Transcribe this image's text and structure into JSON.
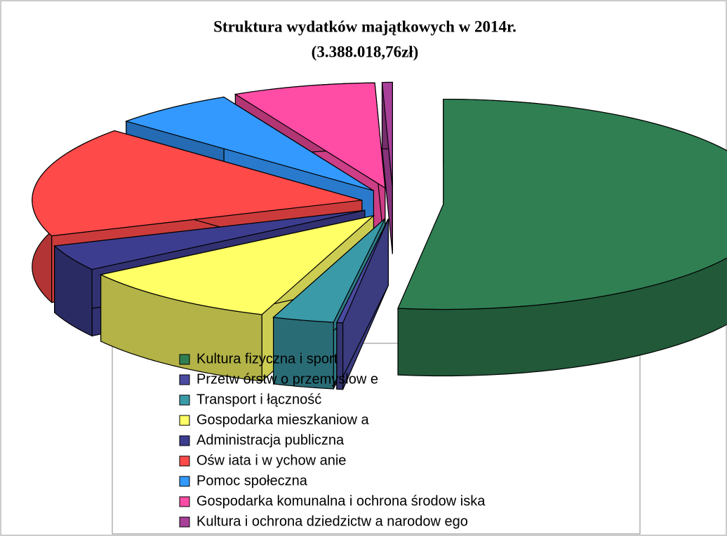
{
  "chart_data": {
    "type": "pie",
    "title": "Struktura wydatków majątkowych w 2014r.",
    "subtitle": "(3.388.018,76zł)",
    "categories": [
      "Kultura fizyczna i sport",
      "Przetw órstw o przemysłow e",
      "Transport i łączność",
      "Gospodarka mieszkaniow a",
      "Administracja publiczna",
      "Ośw iata i w ychow anie",
      "Pomoc społeczna",
      "Gospodarka komunalna i ochrona środow iska",
      "Kultura i ochrona dziedzictw a narodow ego"
    ],
    "values": [
      52.2,
      0.3,
      3,
      10,
      4,
      17,
      6,
      7,
      0.5
    ],
    "colors": [
      "#2f7f52",
      "#4a4aa0",
      "#3a9aa8",
      "#ffff66",
      "#3d3d8f",
      "#ff4a4a",
      "#3399ff",
      "#ff4da6",
      "#a8409a"
    ],
    "legend": "bottom"
  }
}
